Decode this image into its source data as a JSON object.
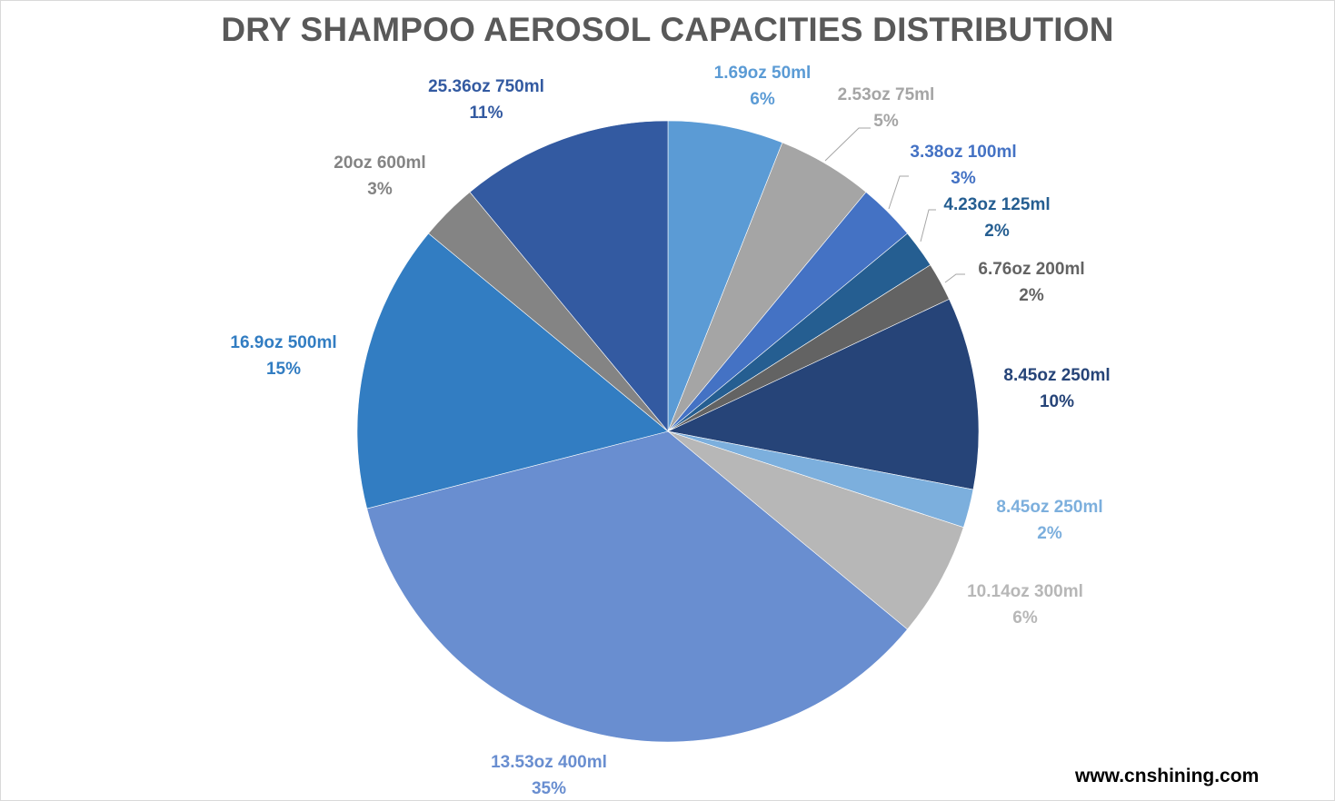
{
  "website": "www.cnshining.com",
  "chart_data": {
    "type": "pie",
    "title": "DRY SHAMPOO AEROSOL CAPACITIES DISTRIBUTION",
    "start_angle_deg": 0,
    "direction": "clockwise",
    "slices": [
      {
        "label": "1.69oz 50ml",
        "value": 6,
        "pct": "6%",
        "color": "#5b9bd5",
        "label_color": "#5b9bd5"
      },
      {
        "label": "2.53oz 75ml",
        "value": 5,
        "pct": "5%",
        "color": "#a5a5a5",
        "label_color": "#a5a5a5"
      },
      {
        "label": "3.38oz 100ml",
        "value": 3,
        "pct": "3%",
        "color": "#4472c4",
        "label_color": "#4472c4"
      },
      {
        "label": "4.23oz 125ml",
        "value": 2,
        "pct": "2%",
        "color": "#255e91",
        "label_color": "#255e91"
      },
      {
        "label": "6.76oz 200ml",
        "value": 2,
        "pct": "2%",
        "color": "#636363",
        "label_color": "#636363"
      },
      {
        "label": "8.45oz 250ml",
        "value": 10,
        "pct": "10%",
        "color": "#264478",
        "label_color": "#264478"
      },
      {
        "label": "8.45oz 250ml",
        "value": 2,
        "pct": "2%",
        "color": "#7cafdd",
        "label_color": "#7cafdd"
      },
      {
        "label": "10.14oz 300ml",
        "value": 6,
        "pct": "6%",
        "color": "#b7b7b7",
        "label_color": "#b7b7b7"
      },
      {
        "label": "13.53oz 400ml",
        "value": 35,
        "pct": "35%",
        "color": "#698ed0",
        "label_color": "#698ed0"
      },
      {
        "label": "16.9oz 500ml",
        "value": 15,
        "pct": "15%",
        "color": "#327dc2",
        "label_color": "#327dc2"
      },
      {
        "label": "20oz 600ml",
        "value": 3,
        "pct": "3%",
        "color": "#848484",
        "label_color": "#848484"
      },
      {
        "label": "25.36oz 750ml",
        "value": 11,
        "pct": "11%",
        "color": "#335aa1",
        "label_color": "#335aa1"
      }
    ]
  }
}
